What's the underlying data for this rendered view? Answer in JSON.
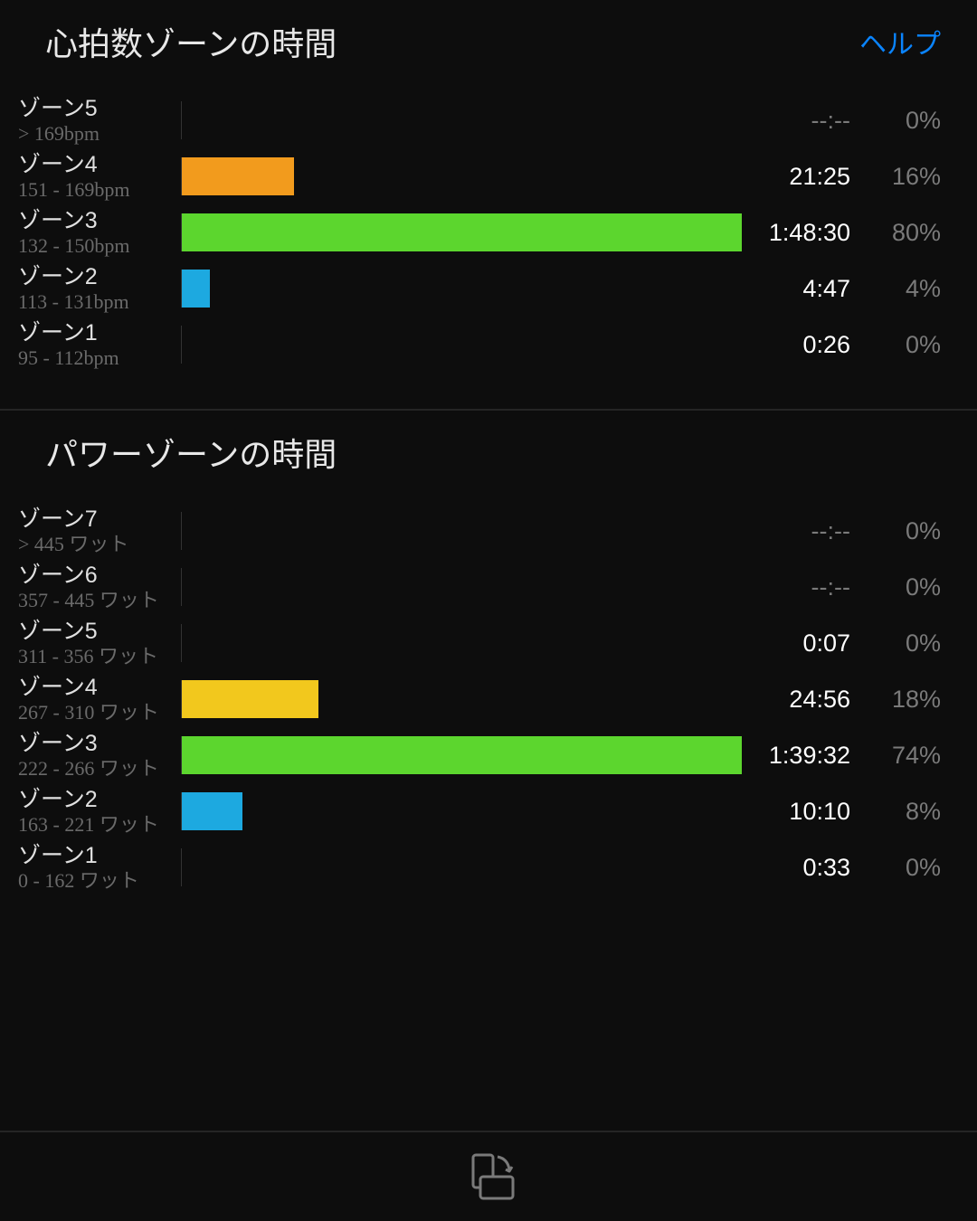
{
  "colors": {
    "background": "#0d0d0d",
    "text_primary": "#e8e8e8",
    "text_secondary": "#6a6a6a",
    "text_value": "#ffffff",
    "text_percent": "#7a7a7a",
    "link": "#0a84ff",
    "divider": "#252525",
    "icon": "#7a7a7a"
  },
  "heart_rate_section": {
    "title": "心拍数ゾーンの時間",
    "help_label": "ヘルプ",
    "bar_max_percent": 80,
    "zones": [
      {
        "name": "ゾーン5",
        "range": "> 169bpm",
        "time": "--:--",
        "percent": 0,
        "color": "#d62020",
        "empty": true
      },
      {
        "name": "ゾーン4",
        "range": "151 - 169bpm",
        "time": "21:25",
        "percent": 16,
        "color": "#f29b1d",
        "empty": false
      },
      {
        "name": "ゾーン3",
        "range": "132 - 150bpm",
        "time": "1:48:30",
        "percent": 80,
        "color": "#5cd62e",
        "empty": false
      },
      {
        "name": "ゾーン2",
        "range": "113 - 131bpm",
        "time": "4:47",
        "percent": 4,
        "color": "#1da9e0",
        "empty": false
      },
      {
        "name": "ゾーン1",
        "range": "95 - 112bpm",
        "time": "0:26",
        "percent": 0,
        "color": "#9a9a9a",
        "empty": false
      }
    ]
  },
  "power_section": {
    "title": "パワーゾーンの時間",
    "bar_max_percent": 74,
    "zones": [
      {
        "name": "ゾーン7",
        "range": "> 445 ワット",
        "time": "--:--",
        "percent": 0,
        "color": "#8a2be2",
        "empty": true
      },
      {
        "name": "ゾーン6",
        "range": "357 - 445 ワット",
        "time": "--:--",
        "percent": 0,
        "color": "#d62020",
        "empty": true
      },
      {
        "name": "ゾーン5",
        "range": "311 - 356 ワット",
        "time": "0:07",
        "percent": 0,
        "color": "#f29b1d",
        "empty": false
      },
      {
        "name": "ゾーン4",
        "range": "267 - 310 ワット",
        "time": "24:56",
        "percent": 18,
        "color": "#f2c81d",
        "empty": false
      },
      {
        "name": "ゾーン3",
        "range": "222 - 266 ワット",
        "time": "1:39:32",
        "percent": 74,
        "color": "#5cd62e",
        "empty": false
      },
      {
        "name": "ゾーン2",
        "range": "163 - 221 ワット",
        "time": "10:10",
        "percent": 8,
        "color": "#1da9e0",
        "empty": false
      },
      {
        "name": "ゾーン1",
        "range": "0 - 162 ワット",
        "time": "0:33",
        "percent": 0,
        "color": "#9a9a9a",
        "empty": false
      }
    ]
  }
}
